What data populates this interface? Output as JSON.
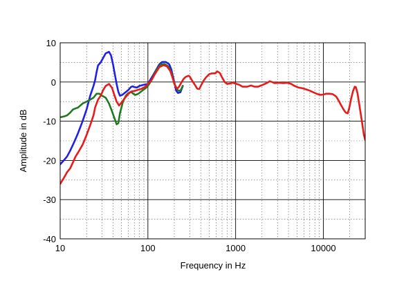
{
  "chart_data": {
    "type": "line",
    "title": "",
    "xlabel": "Frequency  in Hz",
    "ylabel": "Amplitude in dB",
    "xscale": "log",
    "xlim": [
      10,
      30000
    ],
    "ylim": [
      -40,
      10
    ],
    "grid": true,
    "legend": "none",
    "x_ticks": [
      {
        "v": 10,
        "label": "10"
      },
      {
        "v": 100,
        "label": "100"
      },
      {
        "v": 1000,
        "label": "1000"
      },
      {
        "v": 10000,
        "label": "10000"
      }
    ],
    "y_ticks": [
      {
        "v": 10,
        "label": "10"
      },
      {
        "v": 0,
        "label": "0"
      },
      {
        "v": -10,
        "label": "-10"
      },
      {
        "v": -20,
        "label": "-20"
      },
      {
        "v": -30,
        "label": "-30"
      },
      {
        "v": -40,
        "label": "-40"
      }
    ],
    "series": [
      {
        "color": "#1f1fe8",
        "points": [
          [
            10,
            -21
          ],
          [
            11,
            -20
          ],
          [
            12,
            -19
          ],
          [
            13,
            -17.5
          ],
          [
            14,
            -16
          ],
          [
            15,
            -14.5
          ],
          [
            16,
            -13
          ],
          [
            18,
            -10
          ],
          [
            20,
            -7
          ],
          [
            22,
            -3.5
          ],
          [
            24,
            -1
          ],
          [
            25,
            0.5
          ],
          [
            26,
            2.5
          ],
          [
            27,
            4.2
          ],
          [
            29,
            5
          ],
          [
            31,
            6.2
          ],
          [
            33,
            7.3
          ],
          [
            36,
            7.7
          ],
          [
            38,
            6.8
          ],
          [
            40,
            4.5
          ],
          [
            42,
            2
          ],
          [
            44,
            -0.5
          ],
          [
            46,
            -2.5
          ],
          [
            48,
            -3.5
          ],
          [
            51,
            -3.3
          ],
          [
            55,
            -2.7
          ],
          [
            60,
            -2
          ],
          [
            64,
            -1.3
          ],
          [
            67,
            -1.1
          ],
          [
            70,
            -1.3
          ],
          [
            75,
            -1.4
          ],
          [
            80,
            -1
          ],
          [
            90,
            -0.7
          ],
          [
            100,
            -0.5
          ],
          [
            105,
            0.3
          ],
          [
            115,
            1.8
          ],
          [
            125,
            3.2
          ],
          [
            135,
            4.5
          ],
          [
            145,
            5.1
          ],
          [
            160,
            5.1
          ],
          [
            175,
            4.5
          ],
          [
            185,
            3.2
          ],
          [
            195,
            1
          ],
          [
            210,
            -2.2
          ],
          [
            220,
            -2.8
          ],
          [
            235,
            -2.6
          ],
          [
            250,
            -1
          ]
        ]
      },
      {
        "color": "#1e7a1e",
        "points": [
          [
            10,
            -9
          ],
          [
            11,
            -8.8
          ],
          [
            12,
            -8.5
          ],
          [
            13,
            -7.8
          ],
          [
            14,
            -7
          ],
          [
            16,
            -6.5
          ],
          [
            18,
            -5.5
          ],
          [
            20,
            -5
          ],
          [
            22,
            -4.5
          ],
          [
            24,
            -4
          ],
          [
            26,
            -3
          ],
          [
            28,
            -3
          ],
          [
            30,
            -3.5
          ],
          [
            33,
            -4
          ],
          [
            36,
            -5.5
          ],
          [
            39,
            -7.5
          ],
          [
            42,
            -9.5
          ],
          [
            44,
            -10.8
          ],
          [
            46,
            -10.5
          ],
          [
            48,
            -8
          ],
          [
            52,
            -5
          ],
          [
            56,
            -3.5
          ],
          [
            60,
            -2.8
          ],
          [
            64,
            -2.5
          ],
          [
            68,
            -3
          ],
          [
            72,
            -3.3
          ],
          [
            78,
            -3
          ],
          [
            85,
            -2.3
          ],
          [
            95,
            -1.5
          ],
          [
            100,
            -1
          ],
          [
            110,
            0.5
          ],
          [
            125,
            3
          ],
          [
            140,
            4.5
          ],
          [
            155,
            4.6
          ],
          [
            170,
            4
          ],
          [
            185,
            2.5
          ],
          [
            200,
            -0.5
          ],
          [
            220,
            -2.2
          ],
          [
            235,
            -2.2
          ],
          [
            250,
            -1
          ]
        ]
      },
      {
        "color": "#e81a1a",
        "points": [
          [
            10,
            -26
          ],
          [
            11,
            -24.5
          ],
          [
            12,
            -23
          ],
          [
            13,
            -22
          ],
          [
            14,
            -20.5
          ],
          [
            15,
            -19
          ],
          [
            16,
            -18
          ],
          [
            18,
            -16
          ],
          [
            20,
            -13.5
          ],
          [
            22,
            -11
          ],
          [
            24,
            -8.5
          ],
          [
            25,
            -6.5
          ],
          [
            27,
            -4.5
          ],
          [
            29,
            -3.5
          ],
          [
            31,
            -2
          ],
          [
            33,
            -1
          ],
          [
            36,
            -0.5
          ],
          [
            39,
            -1.5
          ],
          [
            41,
            -3
          ],
          [
            44,
            -5
          ],
          [
            47,
            -6
          ],
          [
            51,
            -5
          ],
          [
            55,
            -4
          ],
          [
            60,
            -3
          ],
          [
            65,
            -2.4
          ],
          [
            70,
            -2.3
          ],
          [
            77,
            -2
          ],
          [
            85,
            -1.7
          ],
          [
            95,
            -1.1
          ],
          [
            100,
            -0.5
          ],
          [
            110,
            0.5
          ],
          [
            120,
            2
          ],
          [
            135,
            3.8
          ],
          [
            150,
            4.3
          ],
          [
            165,
            4
          ],
          [
            180,
            2.8
          ],
          [
            195,
            0.5
          ],
          [
            205,
            -1
          ],
          [
            215,
            -1.7
          ],
          [
            225,
            -1.3
          ],
          [
            240,
            -0.2
          ],
          [
            255,
            0.8
          ],
          [
            270,
            1.3
          ],
          [
            290,
            1.6
          ],
          [
            300,
            1.4
          ],
          [
            320,
            0.3
          ],
          [
            345,
            -0.8
          ],
          [
            365,
            -1.7
          ],
          [
            385,
            -1.8
          ],
          [
            405,
            -0.8
          ],
          [
            430,
            0.3
          ],
          [
            460,
            1.2
          ],
          [
            500,
            2
          ],
          [
            540,
            2.2
          ],
          [
            580,
            2.2
          ],
          [
            620,
            2.7
          ],
          [
            660,
            2.3
          ],
          [
            700,
            1.2
          ],
          [
            750,
            0
          ],
          [
            800,
            -0.5
          ],
          [
            860,
            -0.4
          ],
          [
            920,
            -0.2
          ],
          [
            1000,
            -0.4
          ],
          [
            1100,
            -0.7
          ],
          [
            1200,
            -1.2
          ],
          [
            1350,
            -1.2
          ],
          [
            1500,
            -0.9
          ],
          [
            1650,
            -1.2
          ],
          [
            1800,
            -1.2
          ],
          [
            1950,
            -0.9
          ],
          [
            2100,
            -0.6
          ],
          [
            2300,
            -0.2
          ],
          [
            2450,
            0.2
          ],
          [
            2600,
            0
          ],
          [
            2800,
            -0.3
          ],
          [
            3100,
            -0.2
          ],
          [
            3500,
            -0.3
          ],
          [
            3900,
            -0.2
          ],
          [
            4300,
            -0.5
          ],
          [
            4700,
            -1
          ],
          [
            5200,
            -1.4
          ],
          [
            5800,
            -1.6
          ],
          [
            6400,
            -1.9
          ],
          [
            7000,
            -2.2
          ],
          [
            7800,
            -2.7
          ],
          [
            8600,
            -3.1
          ],
          [
            9300,
            -3.3
          ],
          [
            10000,
            -3.2
          ],
          [
            10800,
            -3
          ],
          [
            11800,
            -3
          ],
          [
            12800,
            -3.1
          ],
          [
            14000,
            -3.7
          ],
          [
            15000,
            -4.8
          ],
          [
            16000,
            -6
          ],
          [
            17000,
            -7
          ],
          [
            18000,
            -7.8
          ],
          [
            19000,
            -8
          ],
          [
            19800,
            -6.5
          ],
          [
            20700,
            -4.3
          ],
          [
            21800,
            -2.3
          ],
          [
            22800,
            -1.2
          ],
          [
            23500,
            -1.3
          ],
          [
            24500,
            -2.8
          ],
          [
            26000,
            -6.5
          ],
          [
            27500,
            -10
          ],
          [
            29000,
            -13.5
          ],
          [
            30000,
            -14.8
          ]
        ]
      }
    ]
  }
}
